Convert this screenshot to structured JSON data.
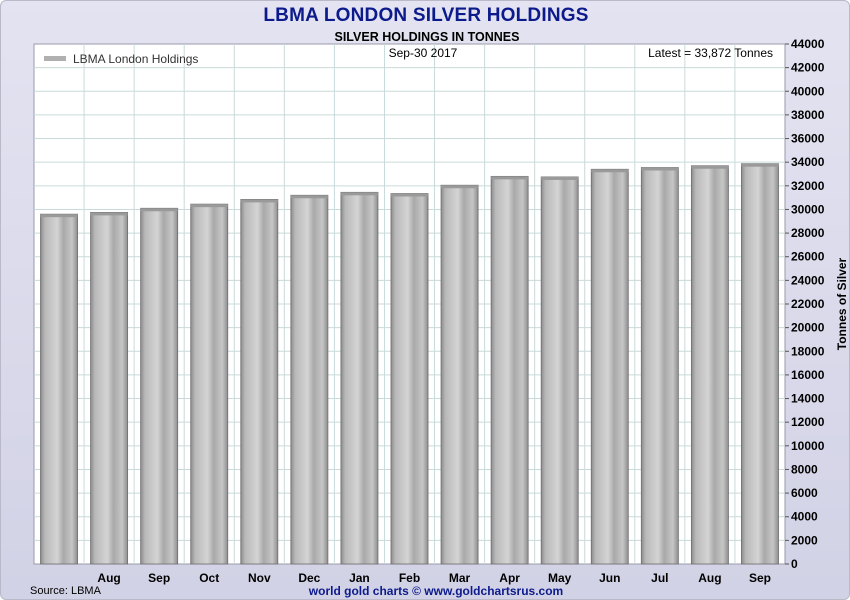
{
  "chart_data": {
    "type": "bar",
    "title": "LBMA LONDON SILVER HOLDINGS",
    "subtitle": "SILVER HOLDINGS IN TONNES",
    "date_label": "Sep-30  2017",
    "latest_label": "Latest = 33,872 Tonnes",
    "legend": "LBMA London Holdings",
    "legend_position": "top-left",
    "ylabel": "Tonnes of Silver",
    "ylim": [
      0,
      44000
    ],
    "yticks": [
      0,
      2000,
      4000,
      6000,
      8000,
      10000,
      12000,
      14000,
      16000,
      18000,
      20000,
      22000,
      24000,
      26000,
      28000,
      30000,
      32000,
      34000,
      36000,
      38000,
      40000,
      42000,
      44000
    ],
    "categories": [
      "",
      "Aug",
      "Sep",
      "Oct",
      "Nov",
      "Dec",
      "Jan",
      "Feb",
      "Mar",
      "Apr",
      "May",
      "Jun",
      "Jul",
      "Aug",
      "Sep"
    ],
    "values": [
      29600,
      29750,
      30100,
      30450,
      30850,
      31200,
      31450,
      31350,
      32050,
      32800,
      32750,
      33400,
      33550,
      33700,
      33872
    ],
    "source": "Source: LBMA",
    "footer": "world gold charts © www.goldchartsrus.com",
    "grid": true,
    "colors": {
      "title": "#0c1a8c",
      "bar": "#c4c4c4",
      "grid": "#c9dada"
    }
  }
}
